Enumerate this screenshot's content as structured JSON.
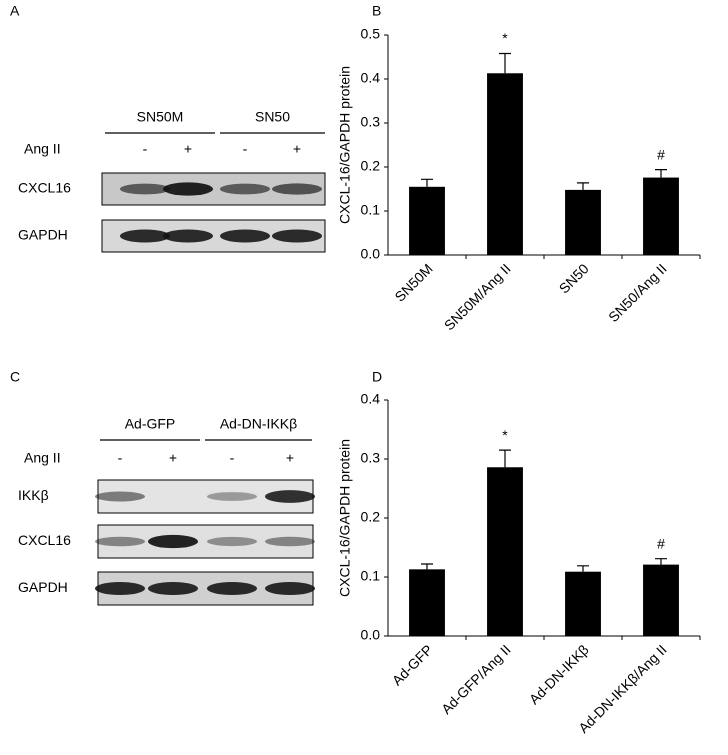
{
  "blots": [
    {
      "panel": "A",
      "groups": [
        "SN50M",
        "SN50"
      ],
      "treatment_label": "Ang II",
      "signs": [
        "-",
        "+",
        "-",
        "+"
      ],
      "rows": [
        "CXCL16",
        "GAPDH"
      ]
    },
    {
      "panel": "C",
      "groups": [
        "Ad-GFP",
        "Ad-DN-IKKβ"
      ],
      "treatment_label": "Ang II",
      "signs": [
        "-",
        "+",
        "-",
        "+"
      ],
      "rows": [
        "IKKβ",
        "CXCL16",
        "GAPDH"
      ]
    }
  ],
  "chart_data": [
    {
      "type": "bar",
      "panel": "B",
      "ylabel": "CXCL-16/GAPDH protein",
      "categories": [
        "SN50M",
        "SN50M/Ang II",
        "SN50",
        "SN50/Ang II"
      ],
      "values": [
        0.155,
        0.413,
        0.148,
        0.176
      ],
      "errors": [
        0.017,
        0.045,
        0.016,
        0.018
      ],
      "bar_labels": [
        null,
        "*",
        null,
        "#"
      ],
      "color": "#000000",
      "ylim": [
        0,
        0.5
      ],
      "yticks": [
        {
          "value": 0,
          "label": "0.0"
        },
        0.1,
        0.2,
        0.3,
        0.4,
        0.5
      ]
    },
    {
      "type": "bar",
      "panel": "D",
      "ylabel": "CXCL-16/GAPDH protein",
      "categories": [
        "Ad-GFP",
        "Ad-GFP/Ang II",
        "Ad-DN-IKKβ",
        "Ad-DN-IKKβ/Ang II"
      ],
      "values": [
        0.113,
        0.286,
        0.109,
        0.121
      ],
      "errors": [
        0.009,
        0.029,
        0.01,
        0.01
      ],
      "bar_labels": [
        null,
        "*",
        null,
        "#"
      ],
      "color": "#000000",
      "ylim": [
        0,
        0.4
      ],
      "yticks": [
        {
          "value": 0,
          "label": "0.0"
        },
        0.1,
        0.2,
        0.3,
        0.4
      ]
    }
  ]
}
